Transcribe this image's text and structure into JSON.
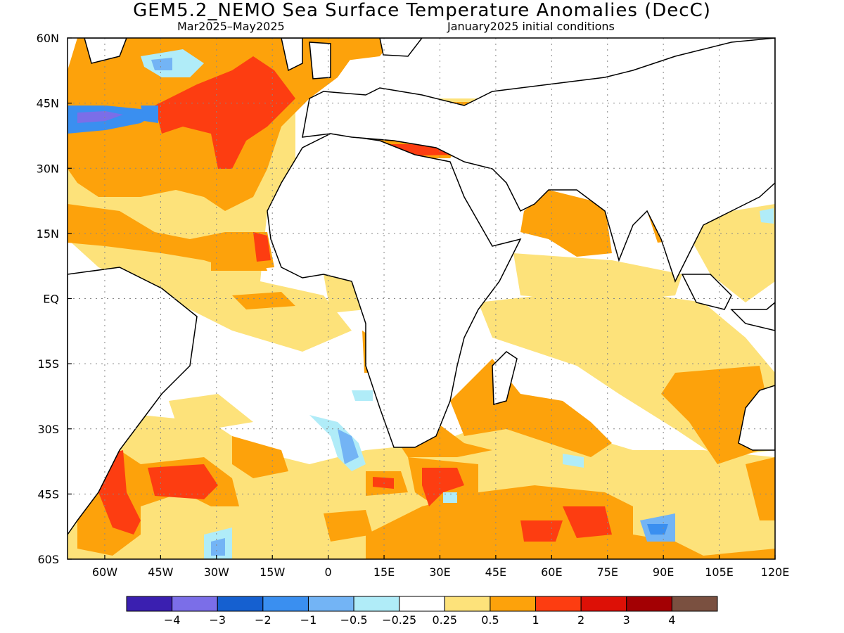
{
  "title": "GEM5.2_NEMO Sea Surface Temperature Anomalies (DecC)",
  "subtitle_left": "Mar2025–May2025",
  "subtitle_right": "January2025 initial conditions",
  "map": {
    "lon_range": [
      -70,
      120
    ],
    "lat_range": [
      -60,
      60
    ],
    "lon_ticks": [
      "60W",
      "45W",
      "30W",
      "15W",
      "0",
      "15E",
      "30E",
      "45E",
      "60E",
      "75E",
      "90E",
      "105E",
      "120E"
    ],
    "lon_tick_values": [
      -60,
      -45,
      -30,
      -15,
      0,
      15,
      30,
      45,
      60,
      75,
      90,
      105,
      120
    ],
    "lat_ticks": [
      "60N",
      "45N",
      "30N",
      "15N",
      "EQ",
      "15S",
      "30S",
      "45S",
      "60S"
    ],
    "lat_tick_values": [
      60,
      45,
      30,
      15,
      0,
      -15,
      -30,
      -45,
      -60
    ],
    "gridlines": "dotted"
  },
  "colorbar": {
    "colors": [
      "#3a1fb0",
      "#7b6ee8",
      "#1560d0",
      "#3a8ff0",
      "#73b4f5",
      "#b0ecf8",
      "#ffffff",
      "#fde27a",
      "#fda20b",
      "#fd3d11",
      "#dd1006",
      "#a30003",
      "#7a5040"
    ],
    "labels": [
      "−4",
      "−3",
      "−2",
      "−1",
      "−0.5",
      "−0.25",
      "0.25",
      "0.5",
      "1",
      "2",
      "3",
      "4"
    ]
  }
}
